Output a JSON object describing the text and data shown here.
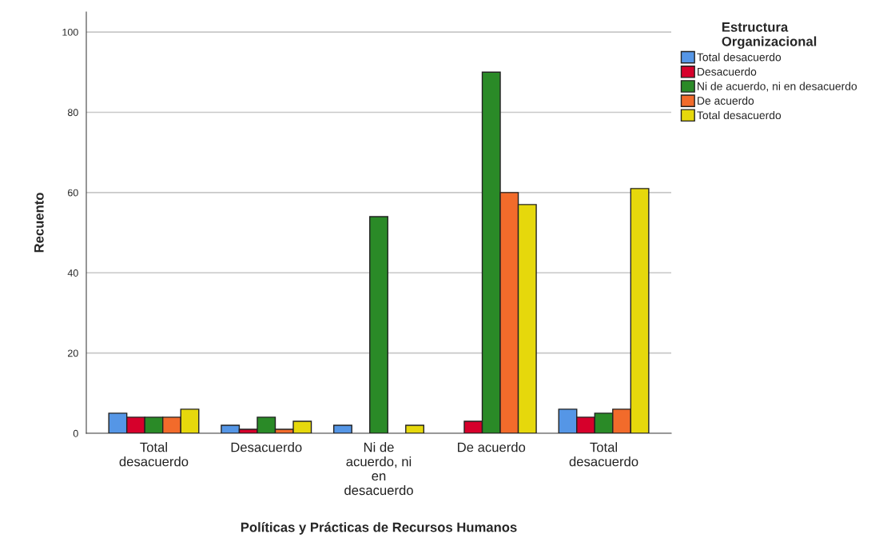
{
  "chart_data": {
    "type": "bar",
    "xlabel": "Políticas y Prácticas de Recursos Humanos",
    "ylabel": "Recuento",
    "legend_title": "Estructura\nOrganizacional",
    "categories": [
      "Total\ndesacuerdo",
      "Desacuerdo",
      "Ni de\nacuerdo, ni\nen\ndesacuerdo",
      "De acuerdo",
      "Total\ndesacuerdo"
    ],
    "series": [
      {
        "name": "Total desacuerdo",
        "color": "#5596e6",
        "values": [
          5,
          2,
          2,
          null,
          6
        ]
      },
      {
        "name": "Desacuerdo",
        "color": "#d6002b",
        "values": [
          4,
          1,
          null,
          3,
          4
        ]
      },
      {
        "name": "Ni de acuerdo, ni en desacuerdo",
        "color": "#2a8a27",
        "values": [
          4,
          4,
          54,
          90,
          5
        ]
      },
      {
        "name": "De acuerdo",
        "color": "#f26b2b",
        "values": [
          4,
          1,
          null,
          60,
          6
        ]
      },
      {
        "name": "Total desacuerdo",
        "color": "#e6d80c",
        "values": [
          6,
          3,
          2,
          57,
          61
        ]
      }
    ],
    "ylim": [
      0,
      105
    ],
    "yticks": [
      0,
      20,
      40,
      60,
      80,
      100
    ],
    "grid": "y",
    "legend": "top right"
  }
}
